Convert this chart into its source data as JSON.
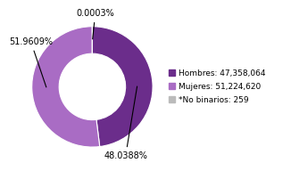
{
  "slices": [
    {
      "label": "Hombres: 47,358,064",
      "value": 48.0388,
      "color": "#6B2D8B"
    },
    {
      "label": "Mujeres: 51,224,620",
      "value": 51.9609,
      "color": "#A96CC4"
    },
    {
      "label": "*No binarios: 259",
      "value": 0.0003,
      "color": "#BBBBBB"
    }
  ],
  "legend_fontsize": 6.5,
  "annotation_fontsize": 7,
  "background_color": "#ffffff",
  "donut_width": 0.45
}
